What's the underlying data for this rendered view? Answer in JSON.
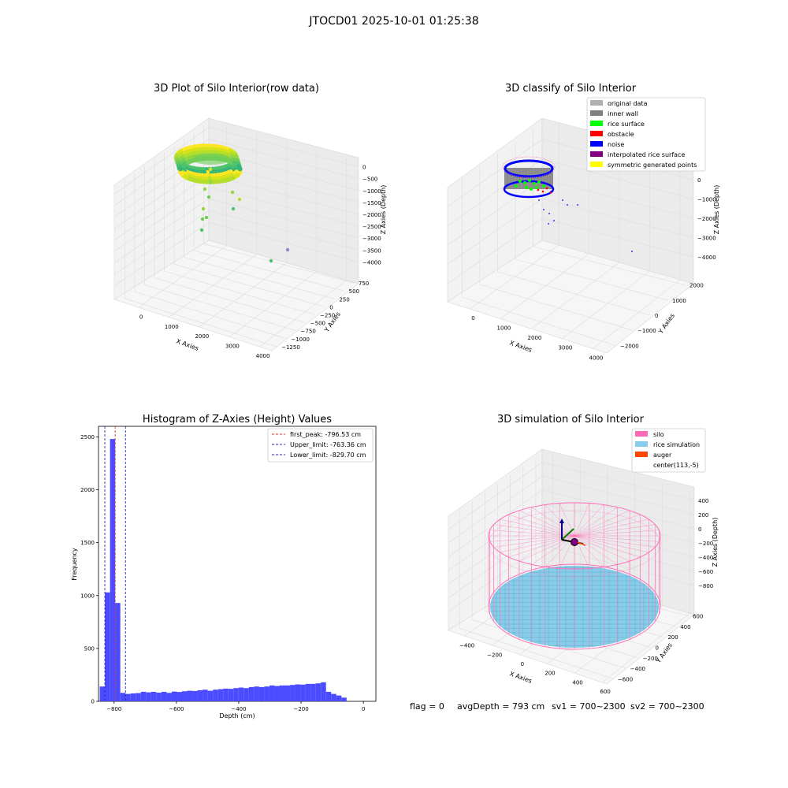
{
  "figure_title": "JTOCD01 2025-10-01 01:25:38",
  "status": {
    "flag": "flag = 0",
    "avg_depth": "avgDepth = 793 cm",
    "sv1": "sv1 = 700~2300",
    "sv2": "sv2 = 700~2300"
  },
  "colors": {
    "hist_bar": "#4b4bff",
    "first_peak": "#e03030",
    "limit_line": "#2a2aa8",
    "silo": "#ff69b4",
    "rice": "#87cdea",
    "auger": "#ff4500",
    "grid_pane": "#f2f2f2"
  },
  "chart_data": [
    {
      "type": "scatter3d",
      "title": "3D Plot of Silo Interior(row data)",
      "xlabel": "X Axies",
      "ylabel": "Y Axies",
      "zlabel": "Z Axies (Depth)",
      "x_ticks": [
        "0",
        "1000",
        "2000",
        "3000",
        "4000"
      ],
      "y_ticks": [
        "750",
        "500",
        "250",
        "0",
        "−250",
        "−500",
        "−750",
        "−1000",
        "−1250"
      ],
      "z_ticks": [
        "0",
        "−500",
        "−1000",
        "−1500",
        "−2000",
        "−2500",
        "−3000",
        "−3500",
        "−4000"
      ],
      "xlim": [
        -500,
        4300
      ],
      "ylim": [
        -1350,
        850
      ],
      "zlim": [
        -4100,
        200
      ],
      "colormap": "viridis"
    },
    {
      "type": "scatter3d",
      "title": "3D classify of Silo Interior",
      "xlabel": "X Axies",
      "ylabel": "Y Axies",
      "zlabel": "Z Axies (Depth)",
      "x_ticks": [
        "0",
        "1000",
        "2000",
        "3000",
        "4000"
      ],
      "y_ticks": [
        "2000",
        "1000",
        "0",
        "−1000",
        "−2000"
      ],
      "z_ticks": [
        "0",
        "−1000",
        "−2000",
        "−3000",
        "−4000"
      ],
      "legend_position": "top-right",
      "legend": [
        {
          "label": "original data",
          "color": "#b0b0b0"
        },
        {
          "label": "inner wall",
          "color": "#808080"
        },
        {
          "label": "rice surface",
          "color": "#00ff00"
        },
        {
          "label": "obstacle",
          "color": "#ff0000"
        },
        {
          "label": "noise",
          "color": "#0000ff"
        },
        {
          "label": "interpolated rice surface",
          "color": "#800080"
        },
        {
          "label": "symmetric generated points",
          "color": "#ffff00"
        }
      ]
    },
    {
      "type": "bar",
      "title": "Histogram of Z-Axies (Height) Values",
      "xlabel": "Depth (cm)",
      "ylabel": "Frequency",
      "xlim": [
        -850,
        40
      ],
      "ylim": [
        0,
        2600
      ],
      "x_ticks": [
        -800,
        -600,
        -400,
        -200,
        0
      ],
      "y_ticks": [
        0,
        500,
        1000,
        1500,
        2000,
        2500
      ],
      "bin_width": 16.5,
      "bin_start": -846,
      "values": [
        140,
        1030,
        2480,
        930,
        80,
        70,
        75,
        78,
        90,
        85,
        90,
        82,
        90,
        80,
        92,
        88,
        95,
        100,
        98,
        105,
        110,
        100,
        110,
        115,
        120,
        118,
        125,
        130,
        125,
        135,
        140,
        135,
        140,
        150,
        145,
        150,
        150,
        155,
        160,
        158,
        165,
        165,
        170,
        180,
        90,
        70,
        55,
        35
      ],
      "legend_position": "top-right",
      "lines": [
        {
          "label": "first_peak: -796.53 cm",
          "x": -796.53,
          "color": "#e03030"
        },
        {
          "label": "Upper_limit: -763.36 cm",
          "x": -763.36,
          "color": "#2a2aa8"
        },
        {
          "label": "Lower_limit: -829.70 cm",
          "x": -829.7,
          "color": "#2a2aa8"
        }
      ]
    },
    {
      "type": "surface3d",
      "title": "3D simulation of Silo Interior",
      "xlabel": "X Axies",
      "ylabel": "Y Axies",
      "zlabel": "Z Axies (Depth)",
      "x_ticks": [
        "−400",
        "−200",
        "0",
        "200",
        "400",
        "600"
      ],
      "y_ticks": [
        "600",
        "400",
        "200",
        "0",
        "−200",
        "−400",
        "−600"
      ],
      "z_ticks": [
        "400",
        "200",
        "0",
        "−200",
        "−400",
        "−600",
        "−800"
      ],
      "legend_position": "top-right",
      "legend": [
        {
          "label": "silo",
          "color": "#ff69b4"
        },
        {
          "label": "rice simulation",
          "color": "#87cdea"
        },
        {
          "label": "auger",
          "color": "#ff4500"
        },
        {
          "label": "center(113,-5)",
          "color": "#ffffff"
        }
      ]
    }
  ]
}
